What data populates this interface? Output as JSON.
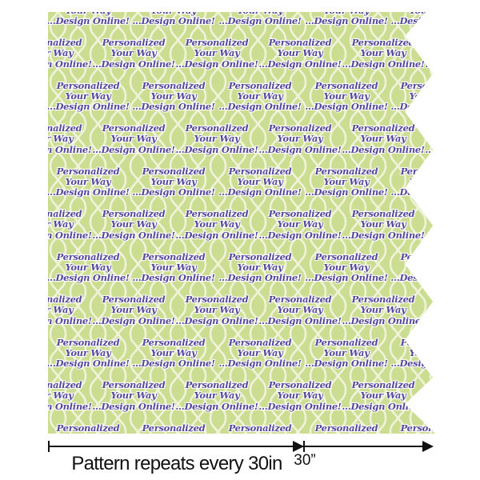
{
  "swatch": {
    "text_lines": [
      "Personalized",
      "Your Way",
      "...Design Online!"
    ],
    "pattern_name": "green-quatrefoil-trellis",
    "colors": {
      "pattern_green": "#cbdd90",
      "pattern_cream": "#f0f3da",
      "text_purple": "#55489c",
      "halo_white": "#ffffff",
      "line_color": "#111111"
    }
  },
  "annotation": {
    "caption": "Pattern repeats every 30in",
    "tick_label": "30”"
  }
}
